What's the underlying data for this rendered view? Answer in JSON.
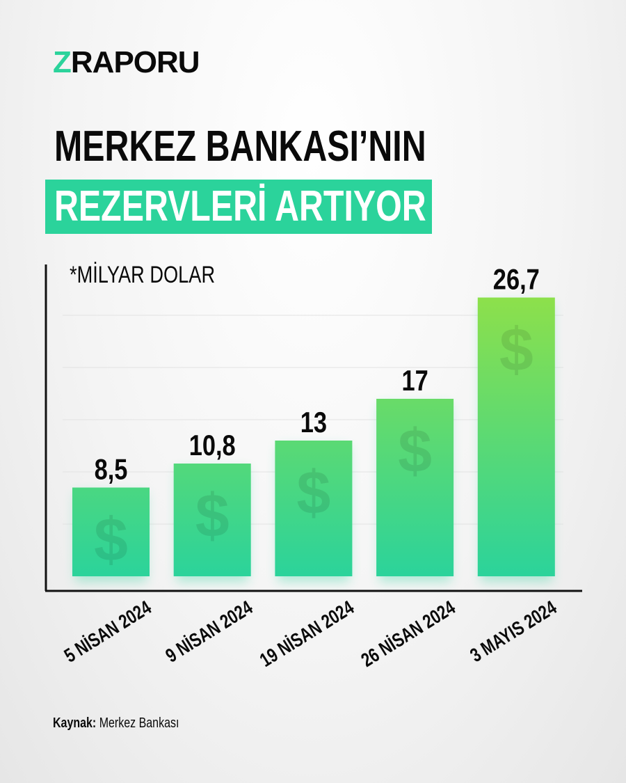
{
  "brand": {
    "logo_z": "Z",
    "logo_rest": "RAPORU",
    "accent": "#2bd39b"
  },
  "title": {
    "line1": "MERKEZ BANKASI’NIN",
    "line2": "REZERVLERİ ARTIYOR"
  },
  "source": {
    "label": "Kaynak:",
    "value": "Merkez Bankası"
  },
  "chart_data": {
    "type": "bar",
    "title": "MERKEZ BANKASI’NIN REZERVLERİ ARTIYOR",
    "unit_note": "*MİLYAR DOLAR",
    "categories": [
      "5 NİSAN 2024",
      "9 NİSAN 2024",
      "19 NİSAN 2024",
      "26 NİSAN 2024",
      "3 MAYIS 2024"
    ],
    "values": [
      8.5,
      10.8,
      13,
      17,
      26.7
    ],
    "data_labels": [
      "8,5",
      "10,8",
      "13",
      "17",
      "26,7"
    ],
    "ylim": [
      0,
      27
    ],
    "grid": true,
    "bar_gradient": [
      "#2bd39b",
      "#8ee04a"
    ],
    "bar_icon": "dollar-sign-icon"
  }
}
